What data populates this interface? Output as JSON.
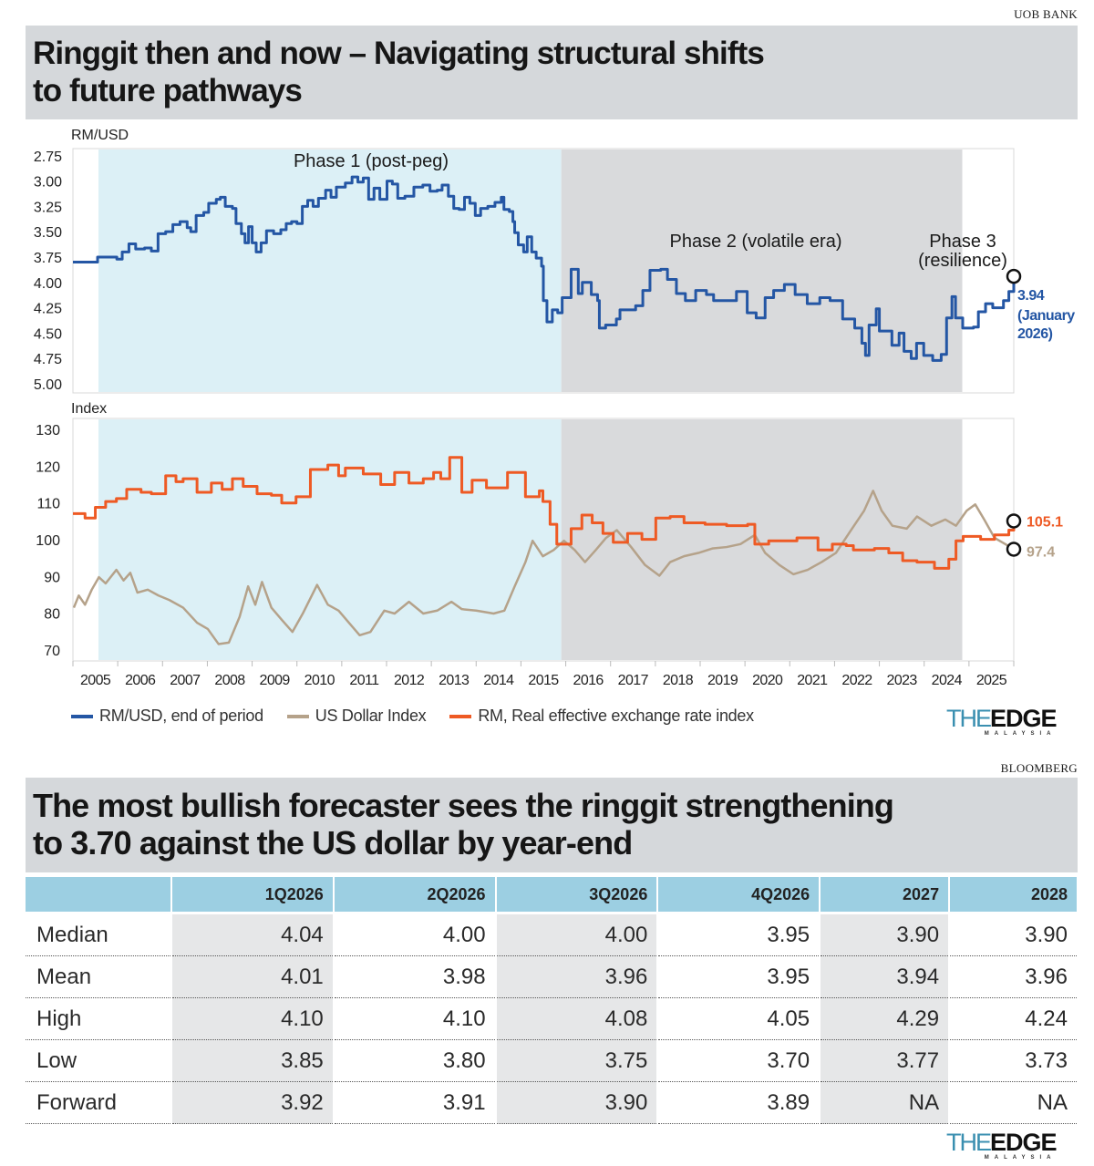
{
  "source_top": "UOB BANK",
  "title_top": [
    "Ringgit then and now – Navigating structural shifts",
    "to future pathways"
  ],
  "colors": {
    "rm_usd": "#2456a4",
    "dxy": "#b5a28a",
    "reer": "#ee5a24",
    "phase1": "#dcf0f6",
    "phase2": "#d9dadc",
    "header": "#9ccfe2",
    "title_bg": "#d5d8db"
  },
  "chart_data": [
    {
      "type": "line",
      "ylabel": "RM/USD",
      "ylim": [
        5.09,
        2.68
      ],
      "y_inverted": true,
      "yticks": [
        "2.75",
        "3.00",
        "3.25",
        "3.50",
        "3.75",
        "4.00",
        "4.25",
        "4.50",
        "4.75",
        "5.00"
      ],
      "xlim": [
        2005,
        2026
      ],
      "phases": [
        {
          "label": "Phase 1 (post-peg)",
          "start": 2005.57,
          "end": 2015.9
        },
        {
          "label": "Phase 2 (volatile era)",
          "start": 2015.9,
          "end": 2024.85
        },
        {
          "label_lines": [
            "Phase 3",
            "(resilience)"
          ],
          "start": 2024.85,
          "end": 2026
        }
      ],
      "series": [
        {
          "name": "RM/USD, end of period",
          "color": "#2456a4",
          "step": true,
          "x": [
            2005.0,
            2005.5,
            2005.55,
            2005.98,
            2006.1,
            2006.25,
            2006.4,
            2006.6,
            2006.75,
            2006.9,
            2007.07,
            2007.23,
            2007.39,
            2007.55,
            2007.63,
            2007.75,
            2007.92,
            2008.03,
            2008.2,
            2008.29,
            2008.4,
            2008.56,
            2008.64,
            2008.76,
            2008.84,
            2008.92,
            2009.0,
            2009.09,
            2009.2,
            2009.32,
            2009.48,
            2009.64,
            2009.76,
            2009.88,
            2010.0,
            2010.12,
            2010.24,
            2010.36,
            2010.48,
            2010.64,
            2010.76,
            2010.88,
            2011.08,
            2011.23,
            2011.36,
            2011.48,
            2011.6,
            2011.72,
            2011.85,
            2012.01,
            2012.13,
            2012.25,
            2012.41,
            2012.61,
            2012.81,
            2012.97,
            2013.13,
            2013.24,
            2013.38,
            2013.5,
            2013.62,
            2013.74,
            2013.86,
            2013.98,
            2014.1,
            2014.26,
            2014.42,
            2014.56,
            2014.62,
            2014.74,
            2014.82,
            2014.86,
            2014.94,
            2015.06,
            2015.14,
            2015.24,
            2015.34,
            2015.46,
            2015.5,
            2015.58,
            2015.7,
            2015.82,
            2015.92,
            2016.12,
            2016.28,
            2016.37,
            2016.57,
            2016.71,
            2016.75,
            2016.89,
            2017.13,
            2017.21,
            2017.56,
            2017.72,
            2017.88,
            2018.12,
            2018.27,
            2018.47,
            2018.67,
            2018.9,
            2019.14,
            2019.3,
            2019.54,
            2019.81,
            2020.05,
            2020.25,
            2020.45,
            2020.64,
            2020.88,
            2021.12,
            2021.39,
            2021.67,
            2021.9,
            2022.18,
            2022.45,
            2022.61,
            2022.69,
            2022.77,
            2022.93,
            2023.0,
            2023.28,
            2023.44,
            2023.55,
            2023.71,
            2023.83,
            2023.99,
            2024.19,
            2024.38,
            2024.5,
            2024.62,
            2024.7,
            2024.86,
            2025.1,
            2025.21,
            2025.37,
            2025.53,
            2025.77,
            2025.89,
            2026.0
          ],
          "y": [
            3.8,
            3.8,
            3.75,
            3.77,
            3.7,
            3.62,
            3.67,
            3.66,
            3.69,
            3.52,
            3.5,
            3.43,
            3.4,
            3.46,
            3.5,
            3.34,
            3.31,
            3.22,
            3.18,
            3.16,
            3.25,
            3.27,
            3.42,
            3.52,
            3.61,
            3.45,
            3.61,
            3.7,
            3.61,
            3.49,
            3.52,
            3.48,
            3.42,
            3.4,
            3.42,
            3.25,
            3.19,
            3.25,
            3.17,
            3.09,
            3.16,
            3.06,
            3.02,
            2.96,
            3.01,
            2.97,
            3.18,
            3.07,
            3.18,
            3.0,
            3.03,
            3.17,
            3.15,
            3.06,
            3.04,
            3.1,
            3.09,
            3.04,
            3.15,
            3.27,
            3.28,
            3.16,
            3.22,
            3.34,
            3.27,
            3.25,
            3.21,
            3.16,
            3.28,
            3.3,
            3.4,
            3.51,
            3.63,
            3.7,
            3.55,
            3.7,
            3.76,
            3.84,
            4.18,
            4.39,
            4.27,
            4.3,
            4.15,
            3.87,
            4.11,
            4.0,
            4.12,
            4.18,
            4.45,
            4.42,
            4.36,
            4.27,
            4.23,
            4.08,
            3.88,
            3.87,
            3.97,
            4.11,
            4.18,
            4.08,
            4.12,
            4.18,
            4.18,
            4.09,
            4.3,
            4.35,
            4.15,
            4.08,
            4.02,
            4.12,
            4.21,
            4.15,
            4.18,
            4.36,
            4.45,
            4.6,
            4.72,
            4.42,
            4.26,
            4.48,
            4.62,
            4.5,
            4.68,
            4.75,
            4.6,
            4.72,
            4.77,
            4.71,
            4.35,
            4.14,
            4.35,
            4.45,
            4.44,
            4.29,
            4.21,
            4.25,
            4.18,
            4.09,
            3.94
          ]
        }
      ],
      "annotation": {
        "value": "3.94",
        "lines": [
          "(January",
          "2026)"
        ]
      }
    },
    {
      "type": "line",
      "ylabel": "Index",
      "ylim": [
        67,
        133
      ],
      "yticks": [
        "130",
        "120",
        "110",
        "100",
        "90",
        "80",
        "70"
      ],
      "xlim": [
        2005,
        2026
      ],
      "xticks": [
        "2005",
        "2006",
        "2007",
        "2008",
        "2009",
        "2010",
        "2011",
        "2012",
        "2013",
        "2014",
        "2015",
        "2016",
        "2017",
        "2018",
        "2019",
        "2020",
        "2021",
        "2022",
        "2023",
        "2024",
        "2025"
      ],
      "series": [
        {
          "name": "US Dollar Index",
          "color": "#b5a28a",
          "step": false,
          "x": [
            2005.02,
            2005.13,
            2005.27,
            2005.42,
            2005.58,
            2005.73,
            2005.97,
            2006.13,
            2006.28,
            2006.44,
            2006.67,
            2006.91,
            2007.15,
            2007.46,
            2007.77,
            2008.01,
            2008.25,
            2008.48,
            2008.72,
            2008.91,
            2009.07,
            2009.22,
            2009.43,
            2009.66,
            2009.9,
            2010.13,
            2010.45,
            2010.69,
            2010.93,
            2011.16,
            2011.4,
            2011.64,
            2011.95,
            2012.18,
            2012.5,
            2012.82,
            2013.13,
            2013.45,
            2013.68,
            2014.0,
            2014.39,
            2014.63,
            2014.86,
            2015.1,
            2015.26,
            2015.49,
            2015.73,
            2015.96,
            2016.2,
            2016.43,
            2016.67,
            2016.9,
            2017.14,
            2017.46,
            2017.77,
            2018.09,
            2018.33,
            2018.64,
            2018.96,
            2019.27,
            2019.59,
            2019.9,
            2020.22,
            2020.45,
            2020.77,
            2021.08,
            2021.4,
            2021.71,
            2022.03,
            2022.34,
            2022.66,
            2022.86,
            2023.05,
            2023.29,
            2023.61,
            2023.84,
            2024.16,
            2024.47,
            2024.71,
            2024.95,
            2025.14,
            2025.34,
            2025.57,
            2025.81,
            2026.0
          ],
          "y": [
            81.5,
            84.8,
            82.3,
            86.4,
            89.8,
            88.1,
            91.8,
            88.9,
            91.0,
            85.6,
            86.4,
            84.8,
            83.6,
            81.5,
            77.4,
            75.7,
            71.6,
            72.0,
            79.0,
            87.3,
            82.3,
            88.5,
            81.5,
            78.2,
            74.9,
            79.9,
            87.7,
            82.3,
            80.7,
            77.4,
            74.0,
            74.9,
            80.7,
            79.9,
            83.1,
            79.9,
            80.7,
            83.1,
            81.1,
            80.7,
            79.9,
            80.7,
            87.3,
            93.9,
            99.7,
            95.5,
            97.2,
            99.7,
            97.2,
            93.9,
            97.2,
            100.5,
            102.6,
            98.0,
            93.1,
            90.2,
            93.9,
            95.5,
            96.4,
            97.6,
            98.0,
            98.8,
            101.3,
            96.4,
            93.1,
            90.6,
            91.8,
            93.9,
            96.4,
            102.1,
            107.9,
            113.3,
            107.9,
            103.8,
            103.0,
            106.3,
            103.8,
            105.5,
            103.8,
            107.9,
            109.6,
            105.5,
            100.5,
            98.8,
            97.4
          ]
        },
        {
          "name": "RM, Real effective exchange rate index",
          "color": "#ee5a24",
          "step": true,
          "x": [
            2005.0,
            2005.27,
            2005.5,
            2005.73,
            2005.97,
            2006.2,
            2006.52,
            2006.75,
            2007.07,
            2007.3,
            2007.46,
            2007.77,
            2008.09,
            2008.33,
            2008.56,
            2008.8,
            2009.11,
            2009.43,
            2009.66,
            2009.98,
            2010.3,
            2010.69,
            2010.93,
            2011.08,
            2011.48,
            2011.87,
            2012.18,
            2012.5,
            2012.82,
            2013.05,
            2013.21,
            2013.41,
            2013.68,
            2013.91,
            2014.23,
            2014.7,
            2014.98,
            2015.1,
            2015.41,
            2015.49,
            2015.65,
            2015.8,
            2016.12,
            2016.36,
            2016.59,
            2016.83,
            2017.06,
            2017.38,
            2017.7,
            2018.01,
            2018.33,
            2018.64,
            2019.11,
            2019.59,
            2020.06,
            2020.22,
            2020.53,
            2021.16,
            2021.63,
            2021.95,
            2022.26,
            2022.42,
            2022.89,
            2023.21,
            2023.52,
            2023.84,
            2024.23,
            2024.55,
            2024.71,
            2024.87,
            2025.26,
            2025.57,
            2025.89,
            2026.0
          ],
          "y": [
            107.1,
            105.9,
            108.8,
            110.4,
            111.2,
            113.7,
            112.9,
            112.5,
            117.4,
            115.8,
            116.6,
            112.9,
            115.4,
            113.7,
            116.6,
            114.5,
            112.5,
            112.1,
            110.0,
            111.7,
            119.1,
            120.3,
            117.4,
            119.5,
            117.9,
            115.0,
            118.3,
            115.4,
            116.6,
            118.3,
            116.6,
            122.4,
            112.9,
            116.2,
            114.1,
            118.3,
            118.3,
            111.7,
            113.3,
            110.4,
            104.2,
            98.8,
            103.0,
            106.7,
            104.6,
            101.7,
            99.3,
            101.7,
            100.1,
            105.9,
            106.3,
            104.6,
            104.2,
            103.8,
            104.2,
            98.8,
            99.7,
            100.5,
            97.2,
            98.8,
            98.4,
            97.2,
            97.6,
            96.4,
            94.3,
            93.9,
            92.2,
            94.7,
            99.7,
            100.9,
            100.1,
            101.3,
            102.6,
            105.1
          ]
        }
      ],
      "end_labels": {
        "reer": "105.1",
        "dxy": "97.4"
      }
    }
  ],
  "legend": [
    {
      "label": "RM/USD, end of period",
      "color": "#2456a4"
    },
    {
      "label": "US Dollar Index",
      "color": "#b5a28a"
    },
    {
      "label": "RM, Real effective exchange rate index",
      "color": "#ee5a24"
    }
  ],
  "logo": {
    "the": "THE",
    "edge": "EDGE",
    "sub": "MALAYSIA"
  },
  "source_bottom": "BLOOMBERG",
  "title_bottom": [
    "The most bullish forecaster sees the ringgit strengthening",
    "to 3.70 against the US dollar by year-end"
  ],
  "table": {
    "columns": [
      "",
      "1Q2026",
      "2Q2026",
      "3Q2026",
      "4Q2026",
      "2027",
      "2028"
    ],
    "rows": [
      [
        "Median",
        "4.04",
        "4.00",
        "4.00",
        "3.95",
        "3.90",
        "3.90"
      ],
      [
        "Mean",
        "4.01",
        "3.98",
        "3.96",
        "3.95",
        "3.94",
        "3.96"
      ],
      [
        "High",
        "4.10",
        "4.10",
        "4.08",
        "4.05",
        "4.29",
        "4.24"
      ],
      [
        "Low",
        "3.85",
        "3.80",
        "3.75",
        "3.70",
        "3.77",
        "3.73"
      ],
      [
        "Forward",
        "3.92",
        "3.91",
        "3.90",
        "3.89",
        "NA",
        "NA"
      ]
    ]
  }
}
